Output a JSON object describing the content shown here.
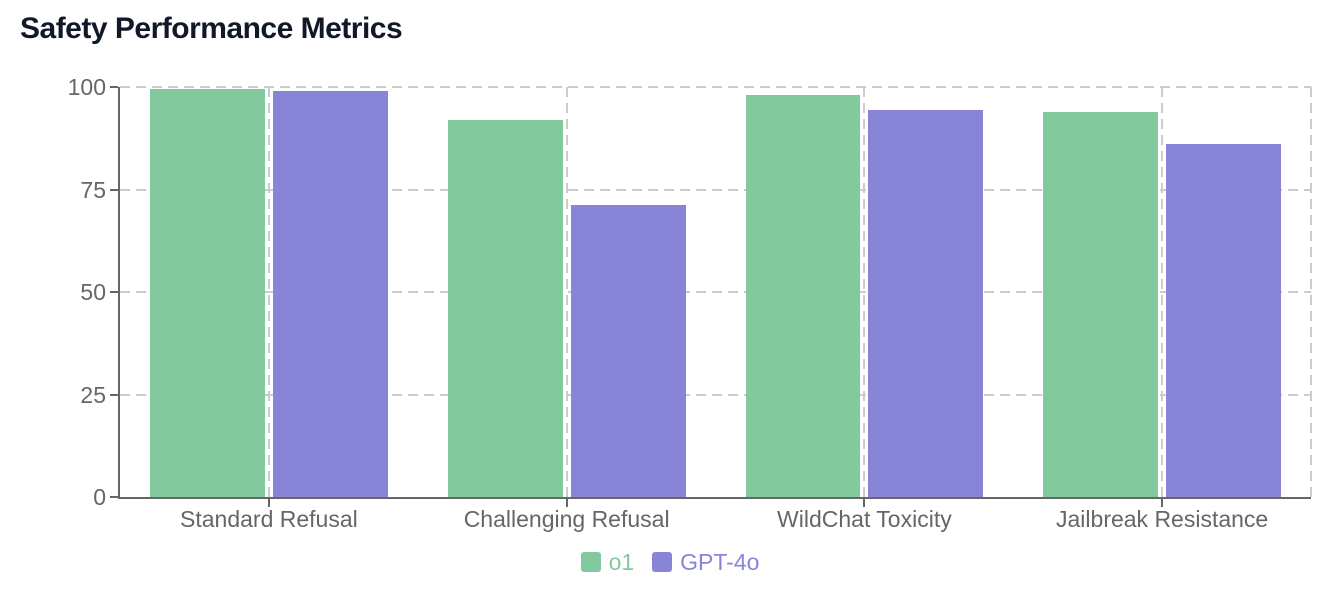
{
  "title": "Safety Performance Metrics",
  "chart_data": {
    "type": "bar",
    "title": "Safety Performance Metrics",
    "categories": [
      "Standard Refusal",
      "Challenging Refusal",
      "WildChat Toxicity",
      "Jailbreak Resistance"
    ],
    "series": [
      {
        "name": "o1",
        "color": "#82ca9d",
        "values": [
          99.5,
          92.0,
          98.0,
          94.0
        ]
      },
      {
        "name": "GPT-4o",
        "color": "#8884d8",
        "values": [
          99.0,
          71.3,
          94.5,
          86.0
        ]
      }
    ],
    "xlabel": "",
    "ylabel": "",
    "ylim": [
      0,
      100
    ],
    "yticks": [
      0,
      25,
      50,
      75,
      100
    ],
    "grid": "dashed",
    "legend_position": "bottom",
    "colors": {
      "axis": "#666666",
      "grid": "#cccccc",
      "tick_label": "#666666",
      "title": "#111827",
      "background": "#ffffff"
    }
  },
  "legend": {
    "items": [
      {
        "label": "o1",
        "color": "#82ca9d"
      },
      {
        "label": "GPT-4o",
        "color": "#8884d8"
      }
    ]
  }
}
